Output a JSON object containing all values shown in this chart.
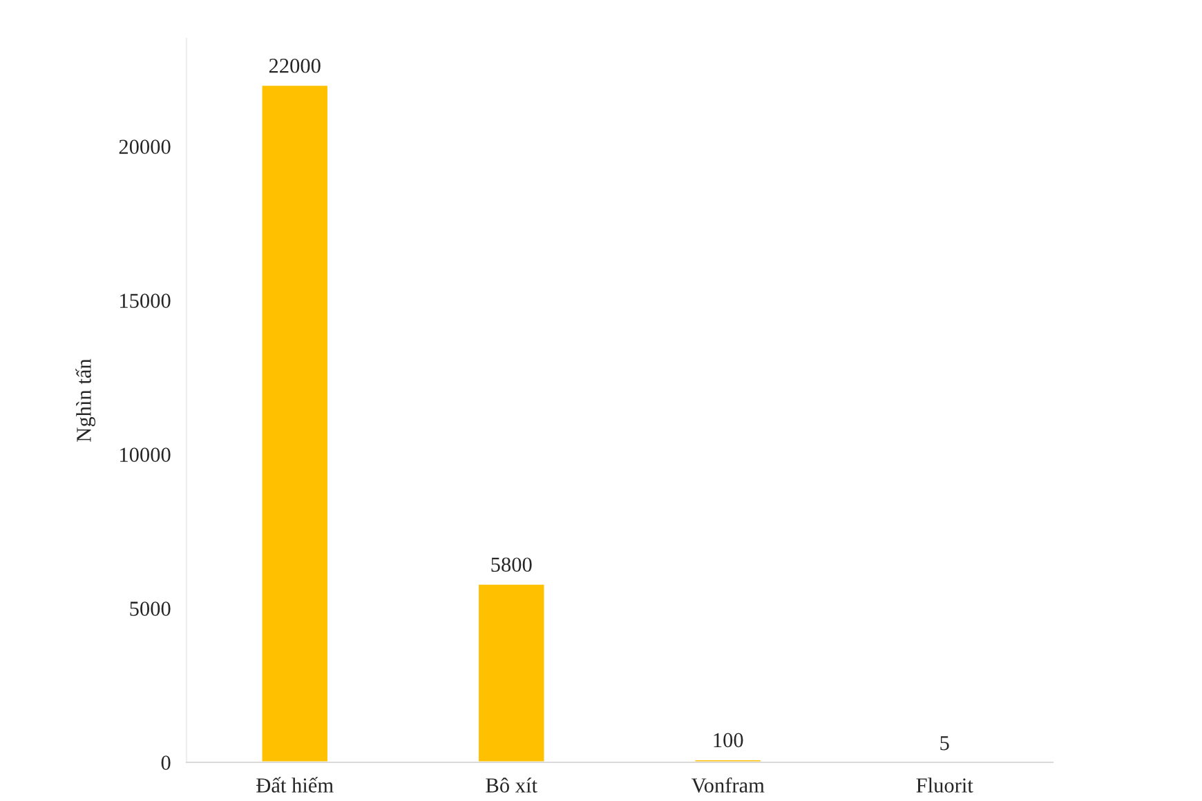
{
  "chart_data": {
    "type": "bar",
    "ylabel": "Nghìn tấn",
    "categories": [
      "Đất hiếm",
      "Bô xít",
      "Vonfram",
      "Fluorit"
    ],
    "values": [
      22000,
      5800,
      100,
      5
    ],
    "color": "#ffc000",
    "ylim": [
      0,
      23500
    ],
    "yticks": [
      0,
      5000,
      10000,
      15000,
      20000
    ],
    "data_labels": true,
    "grid": false,
    "legend": false
  }
}
